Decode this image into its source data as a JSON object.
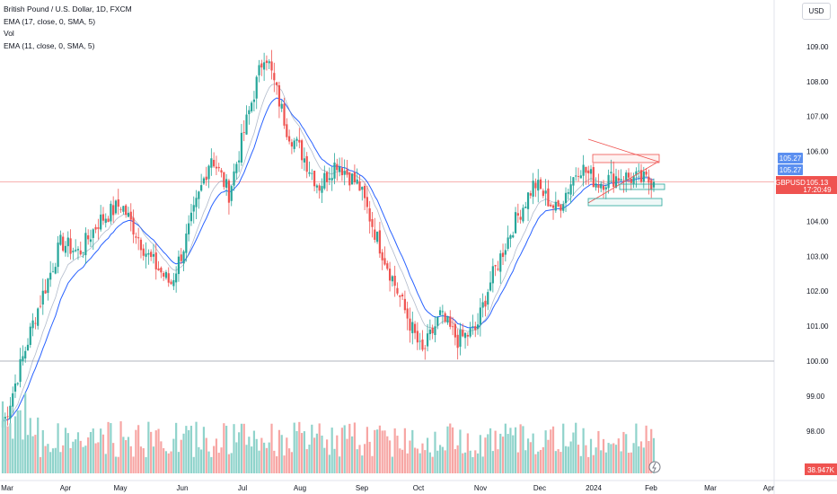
{
  "legend": {
    "symbol_line": "British Pound / U.S. Dollar, 1D, FXCM",
    "ema1": "EMA (17, close, 0, SMA, 5)",
    "vol": "Vol",
    "ema2": "EMA (11, close, 0, SMA, 5)"
  },
  "currency_button": "USD",
  "price_tags": {
    "ema_a": "105.27",
    "ema_b": "105.27",
    "symbol": "GBPUSD",
    "last": "105.13",
    "countdown": "17:20:49",
    "volume": "38.947K"
  },
  "colors": {
    "up": "#26a69a",
    "down": "#ef5350",
    "ema": "#2962ff",
    "ema_tag": "#5b8ff0",
    "vol_up": "#8fd3cb",
    "vol_down": "#f7a6a4"
  },
  "chart_data": {
    "type": "candlestick",
    "x_tick_labels": [
      "Mar",
      "Apr",
      "May",
      "Jun",
      "Jul",
      "Aug",
      "Sep",
      "Oct",
      "Nov",
      "Dec",
      "2024",
      "Feb",
      "Mar",
      "Apr"
    ],
    "y_tick_labels": [
      "98.00",
      "99.00",
      "100.00",
      "101.00",
      "102.00",
      "103.00",
      "104.00",
      "105.00",
      "106.00",
      "107.00",
      "108.00",
      "109.00"
    ],
    "ylim": [
      97.1,
      110.2
    ],
    "last_price": 105.13,
    "horizontal_line": 100.0,
    "anchors": [
      {
        "date": "Mar",
        "close": 98.3
      },
      {
        "date": "Mar mid",
        "close": 101.2
      },
      {
        "date": "Apr",
        "close": 103.4
      },
      {
        "date": "Apr mid",
        "close": 103.1
      },
      {
        "date": "Apr end",
        "close": 104.0
      },
      {
        "date": "May",
        "close": 104.5
      },
      {
        "date": "May mid",
        "close": 103.0
      },
      {
        "date": "May end",
        "close": 102.2
      },
      {
        "date": "Jun",
        "close": 103.3
      },
      {
        "date": "Jun mid",
        "close": 105.9
      },
      {
        "date": "Jun end",
        "close": 104.8
      },
      {
        "date": "Jul",
        "close": 106.9
      },
      {
        "date": "Jul peak",
        "close": 108.9
      },
      {
        "date": "Jul end",
        "close": 106.6
      },
      {
        "date": "Aug",
        "close": 106.0
      },
      {
        "date": "Aug mid",
        "close": 105.0
      },
      {
        "date": "Aug end",
        "close": 105.7
      },
      {
        "date": "Sep",
        "close": 105.0
      },
      {
        "date": "Sep mid",
        "close": 103.5
      },
      {
        "date": "Sep end",
        "close": 101.5
      },
      {
        "date": "Oct",
        "close": 100.2
      },
      {
        "date": "Oct mid",
        "close": 101.3
      },
      {
        "date": "Oct end",
        "close": 100.6
      },
      {
        "date": "Nov",
        "close": 100.9
      },
      {
        "date": "Nov mid",
        "close": 102.2
      },
      {
        "date": "Nov end",
        "close": 103.8
      },
      {
        "date": "Dec",
        "close": 105.1
      },
      {
        "date": "Dec mid",
        "close": 104.3
      },
      {
        "date": "Dec end",
        "close": 105.6
      },
      {
        "date": "2024",
        "close": 105.1
      },
      {
        "date": "Jan mid",
        "close": 105.3
      },
      {
        "date": "Feb",
        "close": 105.13
      }
    ]
  }
}
